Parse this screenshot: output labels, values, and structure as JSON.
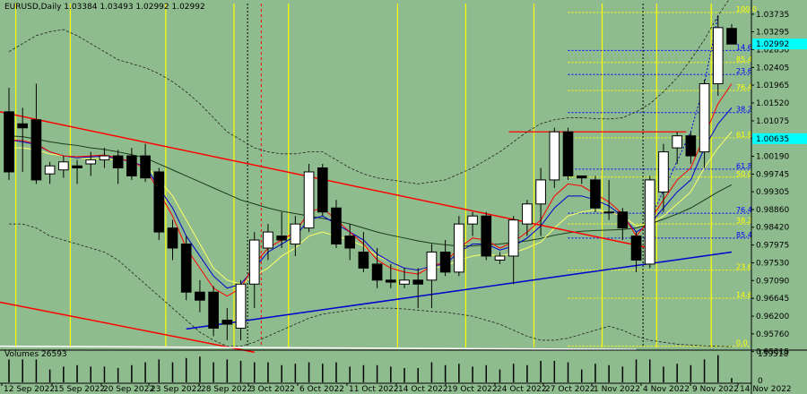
{
  "header": {
    "symbol_info": "EURUSD,Daily  1.03384 1.03493 1.02992 1.02992"
  },
  "volume": {
    "label": "Volumes 26593",
    "axis_labels": [
      "159518",
      "0"
    ]
  },
  "colors": {
    "background": "#8fbc8f",
    "bull_candle": "#ffffff",
    "bear_candle": "#000000",
    "trend_red": "#ff0000",
    "trend_blue": "#0000cd",
    "ma_black": "#000000",
    "ma_yellow": "#ffff66",
    "vline_yellow": "#ffff00",
    "fib_blue": "#0000ff",
    "fib_yellow": "#ffff00",
    "current_price_bg": "#00ffff"
  },
  "chart_data": {
    "type": "candlestick",
    "y_range": [
      1.04,
      0.9542
    ],
    "price_ticks": [
      {
        "value": 1.03735,
        "label": "1.03735"
      },
      {
        "value": 1.03295,
        "label": "1.03295"
      },
      {
        "value": 1.0285,
        "label": "1.02850"
      },
      {
        "value": 1.02405,
        "label": "1.02405"
      },
      {
        "value": 1.01965,
        "label": "1.01965"
      },
      {
        "value": 1.0152,
        "label": "1.01520"
      },
      {
        "value": 1.01075,
        "label": "1.01075"
      },
      {
        "value": 1.00635,
        "label": "1.00635"
      },
      {
        "value": 1.0019,
        "label": "1.00190"
      },
      {
        "value": 0.99745,
        "label": "0.99745"
      },
      {
        "value": 0.99305,
        "label": "0.99305"
      },
      {
        "value": 0.9886,
        "label": "0.98860"
      },
      {
        "value": 0.9842,
        "label": "0.98420"
      },
      {
        "value": 0.97975,
        "label": "0.97975"
      },
      {
        "value": 0.9753,
        "label": "0.97530"
      },
      {
        "value": 0.9709,
        "label": "0.97090"
      },
      {
        "value": 0.96645,
        "label": "0.96645"
      },
      {
        "value": 0.962,
        "label": "0.96200"
      },
      {
        "value": 0.9576,
        "label": "0.95760"
      },
      {
        "value": 0.95315,
        "label": "0.95315"
      }
    ],
    "current_price": {
      "value": 1.02992,
      "label": "1.02992"
    },
    "x_labels": [
      "12 Sep 2022",
      "15 Sep 2022",
      "20 Sep 2022",
      "23 Sep 2022",
      "28 Sep 2022",
      "3 Oct 2022",
      "6 Oct 2022",
      "11 Oct 2022",
      "14 Oct 2022",
      "19 Oct 2022",
      "24 Oct 2022",
      "27 Oct 2022",
      "1 Nov 2022",
      "4 Nov 2022",
      "9 Nov 2022",
      "14 Nov 2022"
    ],
    "candles": [
      {
        "o": 1.013,
        "h": 1.019,
        "l": 0.996,
        "c": 0.998,
        "v": 0.8
      },
      {
        "o": 1.01,
        "h": 1.014,
        "l": 0.998,
        "c": 1.009,
        "v": 0.8
      },
      {
        "o": 1.011,
        "h": 1.02,
        "l": 0.995,
        "c": 0.996,
        "v": 0.8
      },
      {
        "o": 0.9975,
        "h": 1.0005,
        "l": 0.995,
        "c": 0.9995,
        "v": 0.45
      },
      {
        "o": 0.9985,
        "h": 1.002,
        "l": 0.9965,
        "c": 1.0005,
        "v": 0.55
      },
      {
        "o": 0.9995,
        "h": 1.001,
        "l": 0.995,
        "c": 0.999,
        "v": 0.6
      },
      {
        "o": 1.0,
        "h": 1.003,
        "l": 0.997,
        "c": 1.001,
        "v": 0.55
      },
      {
        "o": 1.001,
        "h": 1.004,
        "l": 0.999,
        "c": 1.002,
        "v": 0.55
      },
      {
        "o": 1.002,
        "h": 1.0035,
        "l": 0.995,
        "c": 0.999,
        "v": 0.5
      },
      {
        "o": 1.002,
        "h": 1.004,
        "l": 0.996,
        "c": 0.997,
        "v": 0.6
      },
      {
        "o": 1.002,
        "h": 1.005,
        "l": 0.9955,
        "c": 0.9965,
        "v": 0.7
      },
      {
        "o": 0.998,
        "h": 0.999,
        "l": 0.981,
        "c": 0.983,
        "v": 0.8
      },
      {
        "o": 0.984,
        "h": 0.986,
        "l": 0.976,
        "c": 0.979,
        "v": 0.7
      },
      {
        "o": 0.98,
        "h": 0.982,
        "l": 0.966,
        "c": 0.968,
        "v": 0.85
      },
      {
        "o": 0.968,
        "h": 0.971,
        "l": 0.963,
        "c": 0.966,
        "v": 0.9
      },
      {
        "o": 0.968,
        "h": 0.9695,
        "l": 0.957,
        "c": 0.959,
        "v": 0.7
      },
      {
        "o": 0.961,
        "h": 0.964,
        "l": 0.956,
        "c": 0.96,
        "v": 0.8
      },
      {
        "o": 0.959,
        "h": 0.971,
        "l": 0.956,
        "c": 0.97,
        "v": 0.75
      },
      {
        "o": 0.97,
        "h": 0.983,
        "l": 0.964,
        "c": 0.981,
        "v": 0.7
      },
      {
        "o": 0.979,
        "h": 0.985,
        "l": 0.976,
        "c": 0.983,
        "v": 0.7
      },
      {
        "o": 0.982,
        "h": 0.988,
        "l": 0.979,
        "c": 0.981,
        "v": 0.6
      },
      {
        "o": 0.98,
        "h": 0.987,
        "l": 0.977,
        "c": 0.985,
        "v": 0.65
      },
      {
        "o": 0.984,
        "h": 1.0,
        "l": 0.983,
        "c": 0.998,
        "v": 0.7
      },
      {
        "o": 0.999,
        "h": 1.0,
        "l": 0.987,
        "c": 0.988,
        "v": 0.65
      },
      {
        "o": 0.989,
        "h": 0.991,
        "l": 0.979,
        "c": 0.98,
        "v": 0.7
      },
      {
        "o": 0.982,
        "h": 0.985,
        "l": 0.976,
        "c": 0.979,
        "v": 0.55
      },
      {
        "o": 0.978,
        "h": 0.983,
        "l": 0.973,
        "c": 0.974,
        "v": 0.6
      },
      {
        "o": 0.975,
        "h": 0.979,
        "l": 0.969,
        "c": 0.971,
        "v": 0.6
      },
      {
        "o": 0.971,
        "h": 0.975,
        "l": 0.969,
        "c": 0.9705,
        "v": 0.55
      },
      {
        "o": 0.97,
        "h": 0.974,
        "l": 0.969,
        "c": 0.971,
        "v": 0.5
      },
      {
        "o": 0.971,
        "h": 0.974,
        "l": 0.964,
        "c": 0.97,
        "v": 0.5
      },
      {
        "o": 0.971,
        "h": 0.98,
        "l": 0.964,
        "c": 0.978,
        "v": 0.7
      },
      {
        "o": 0.978,
        "h": 0.981,
        "l": 0.972,
        "c": 0.973,
        "v": 0.6
      },
      {
        "o": 0.973,
        "h": 0.987,
        "l": 0.972,
        "c": 0.985,
        "v": 0.65
      },
      {
        "o": 0.985,
        "h": 0.988,
        "l": 0.982,
        "c": 0.987,
        "v": 0.55
      },
      {
        "o": 0.987,
        "h": 0.988,
        "l": 0.976,
        "c": 0.977,
        "v": 0.6
      },
      {
        "o": 0.976,
        "h": 0.978,
        "l": 0.975,
        "c": 0.977,
        "v": 0.45
      },
      {
        "o": 0.977,
        "h": 0.987,
        "l": 0.97,
        "c": 0.986,
        "v": 0.65
      },
      {
        "o": 0.985,
        "h": 0.991,
        "l": 0.982,
        "c": 0.99,
        "v": 0.6
      },
      {
        "o": 0.99,
        "h": 0.999,
        "l": 0.982,
        "c": 0.996,
        "v": 0.75
      },
      {
        "o": 0.996,
        "h": 1.009,
        "l": 0.994,
        "c": 1.008,
        "v": 0.75
      },
      {
        "o": 1.008,
        "h": 1.009,
        "l": 0.996,
        "c": 0.997,
        "v": 0.7
      },
      {
        "o": 0.997,
        "h": 0.997,
        "l": 0.995,
        "c": 0.9965,
        "v": 0.45
      },
      {
        "o": 0.996,
        "h": 0.997,
        "l": 0.988,
        "c": 0.989,
        "v": 0.65
      },
      {
        "o": 0.988,
        "h": 0.996,
        "l": 0.986,
        "c": 0.988,
        "v": 0.6
      },
      {
        "o": 0.988,
        "h": 0.989,
        "l": 0.981,
        "c": 0.984,
        "v": 0.55
      },
      {
        "o": 0.982,
        "h": 0.983,
        "l": 0.973,
        "c": 0.976,
        "v": 0.8
      },
      {
        "o": 0.975,
        "h": 0.997,
        "l": 0.974,
        "c": 0.996,
        "v": 0.8
      },
      {
        "o": 0.993,
        "h": 1.005,
        "l": 0.988,
        "c": 1.003,
        "v": 0.55
      },
      {
        "o": 1.004,
        "h": 1.008,
        "l": 1.0,
        "c": 1.007,
        "v": 0.65
      },
      {
        "o": 1.007,
        "h": 1.008,
        "l": 1.0,
        "c": 1.002,
        "v": 0.6
      },
      {
        "o": 1.003,
        "h": 1.021,
        "l": 0.999,
        "c": 1.02,
        "v": 0.8
      },
      {
        "o": 1.02,
        "h": 1.037,
        "l": 1.017,
        "c": 1.034,
        "v": 0.95
      },
      {
        "o": 1.0338,
        "h": 1.0349,
        "l": 1.0299,
        "c": 1.0299,
        "v": 0.15
      }
    ],
    "moving_averages": [
      {
        "name": "ma_black",
        "values": [
          1.007,
          1.0068,
          1.0062,
          1.0055,
          1.005,
          1.0046,
          1.004,
          1.0036,
          1.003,
          1.0023,
          1.0015,
          1.0,
          0.9985,
          0.997,
          0.9955,
          0.994,
          0.9925,
          0.991,
          0.99,
          0.989,
          0.9882,
          0.9876,
          0.987,
          0.9864,
          0.9858,
          0.985,
          0.984,
          0.983,
          0.9822,
          0.9815,
          0.9808,
          0.9802,
          0.9798,
          0.9795,
          0.9795,
          0.9798,
          0.98,
          0.9804,
          0.9808,
          0.9814,
          0.9822,
          0.9828,
          0.9832,
          0.9834,
          0.9835,
          0.9836,
          0.984,
          0.985,
          0.9862,
          0.9875,
          0.989,
          0.991,
          0.993,
          0.9948
        ]
      },
      {
        "name": "ma_yellow",
        "values": [
          1.004,
          1.004,
          1.0035,
          1.0025,
          1.002,
          1.0015,
          1.0012,
          1.0012,
          1.001,
          1.0005,
          0.9998,
          0.996,
          0.992,
          0.986,
          0.98,
          0.974,
          0.971,
          0.97,
          0.972,
          0.974,
          0.977,
          0.979,
          0.982,
          0.983,
          0.982,
          0.981,
          0.9795,
          0.977,
          0.9755,
          0.974,
          0.9735,
          0.974,
          0.9745,
          0.976,
          0.977,
          0.9775,
          0.977,
          0.9778,
          0.979,
          0.9805,
          0.984,
          0.987,
          0.988,
          0.9885,
          0.988,
          0.987,
          0.9845,
          0.985,
          0.987,
          0.99,
          0.993,
          0.999,
          1.004,
          1.008
        ]
      },
      {
        "name": "ma_blue",
        "values": [
          1.006,
          1.0055,
          1.0048,
          1.003,
          1.002,
          1.0015,
          1.0018,
          1.002,
          1.0012,
          1.0005,
          0.9995,
          0.994,
          0.989,
          0.982,
          0.977,
          0.972,
          0.969,
          0.97,
          0.974,
          0.978,
          0.98,
          0.982,
          0.986,
          0.987,
          0.985,
          0.983,
          0.981,
          0.9775,
          0.9755,
          0.974,
          0.9735,
          0.9745,
          0.975,
          0.978,
          0.98,
          0.98,
          0.9785,
          0.9795,
          0.9815,
          0.9845,
          0.989,
          0.992,
          0.992,
          0.991,
          0.9895,
          0.987,
          0.983,
          0.985,
          0.989,
          0.993,
          0.996,
          1.004,
          1.01,
          1.014
        ]
      },
      {
        "name": "ma_red",
        "values": [
          1.006,
          1.0058,
          1.005,
          1.003,
          1.002,
          1.0018,
          1.002,
          1.0022,
          1.0015,
          1.0005,
          0.999,
          0.993,
          0.987,
          0.979,
          0.974,
          0.969,
          0.967,
          0.969,
          0.975,
          0.979,
          0.981,
          0.983,
          0.988,
          0.989,
          0.986,
          0.983,
          0.98,
          0.976,
          0.974,
          0.973,
          0.9725,
          0.9745,
          0.9755,
          0.979,
          0.9815,
          0.981,
          0.979,
          0.9805,
          0.983,
          0.986,
          0.992,
          0.995,
          0.9945,
          0.9925,
          0.9905,
          0.9875,
          0.982,
          0.986,
          0.991,
          0.996,
          0.999,
          1.007,
          1.015,
          1.02
        ]
      }
    ],
    "bollinger": {
      "upper": [
        1.028,
        1.03,
        1.032,
        1.033,
        1.0335,
        1.032,
        1.03,
        1.028,
        1.026,
        1.025,
        1.024,
        1.0225,
        1.0205,
        1.018,
        1.015,
        1.0115,
        1.008,
        1.006,
        1.004,
        1.003,
        1.0025,
        1.0025,
        1.003,
        1.003,
        1.001,
        0.999,
        0.9975,
        0.9965,
        0.996,
        0.9955,
        0.995,
        0.9955,
        0.996,
        0.9975,
        0.999,
        1.001,
        1.003,
        1.0055,
        1.008,
        1.01,
        1.011,
        1.0115,
        1.0115,
        1.0113,
        1.0112,
        1.0115,
        1.013,
        1.015,
        1.018,
        1.0215,
        1.026,
        1.031,
        1.037,
        1.042
      ],
      "lower": [
        0.985,
        0.985,
        0.984,
        0.982,
        0.981,
        0.98,
        0.979,
        0.978,
        0.976,
        0.973,
        0.97,
        0.967,
        0.964,
        0.961,
        0.958,
        0.956,
        0.9545,
        0.9545,
        0.9555,
        0.957,
        0.9585,
        0.96,
        0.9615,
        0.9625,
        0.963,
        0.9635,
        0.964,
        0.964,
        0.964,
        0.9638,
        0.9635,
        0.9632,
        0.963,
        0.9625,
        0.962,
        0.961,
        0.96,
        0.9585,
        0.957,
        0.956,
        0.956,
        0.9565,
        0.9575,
        0.9585,
        0.9595,
        0.9585,
        0.957,
        0.956,
        0.9555,
        0.955,
        0.9548,
        0.9546,
        0.9545,
        0.9544
      ]
    },
    "fib_levels": [
      {
        "label": "100.0",
        "value": 1.0378,
        "color": "#ffff00"
      },
      {
        "label": "14.6",
        "value": 1.0283,
        "color": "#0000ff"
      },
      {
        "label": "85.4",
        "value": 1.0253,
        "color": "#ffff00"
      },
      {
        "label": "23.6",
        "value": 1.0223,
        "color": "#0000ff"
      },
      {
        "label": "76.4",
        "value": 1.0183,
        "color": "#ffff00"
      },
      {
        "label": "38.2",
        "value": 1.0128,
        "color": "#0000ff"
      },
      {
        "label": "61.8",
        "value": 1.0065,
        "color": "#ffff00"
      },
      {
        "label": "61.8",
        "value": 0.9987,
        "color": "#0000ff"
      },
      {
        "label": "50.0",
        "value": 0.9967,
        "color": "#ffff00"
      },
      {
        "label": "76.4",
        "value": 0.9877,
        "color": "#0000ff"
      },
      {
        "label": "38.2",
        "value": 0.985,
        "color": "#ffff00"
      },
      {
        "label": "85.4",
        "value": 0.9815,
        "color": "#0000ff"
      },
      {
        "label": "23.6",
        "value": 0.9735,
        "color": "#ffff00"
      },
      {
        "label": "14.6",
        "value": 0.9665,
        "color": "#ffff00"
      },
      {
        "label": "0.0",
        "value": 0.9545,
        "color": "#ffff00"
      }
    ]
  }
}
